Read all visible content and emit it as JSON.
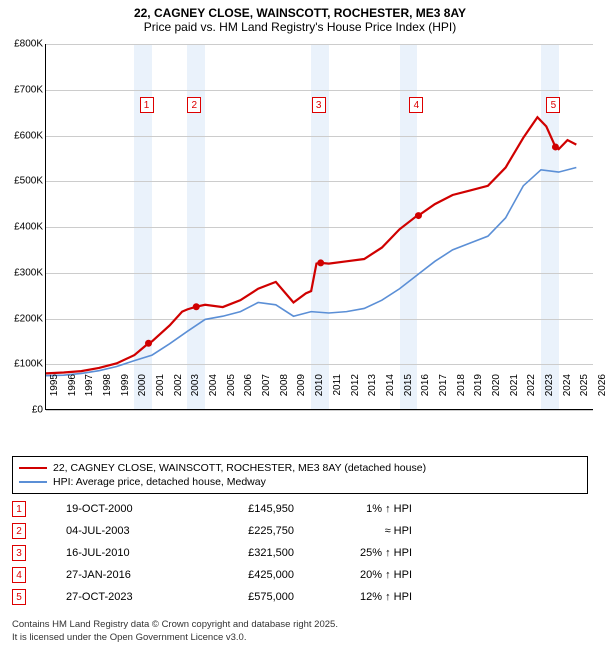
{
  "title_line1": "22, CAGNEY CLOSE, WAINSCOTT, ROCHESTER, ME3 8AY",
  "title_line2": "Price paid vs. HM Land Registry's House Price Index (HPI)",
  "chart": {
    "type": "line",
    "x_min": 1995,
    "x_max": 2026,
    "y_min": 0,
    "y_max": 800000,
    "y_ticks": [
      0,
      100000,
      200000,
      300000,
      400000,
      500000,
      600000,
      700000,
      800000
    ],
    "y_tick_labels": [
      "£0",
      "£100K",
      "£200K",
      "£300K",
      "£400K",
      "£500K",
      "£600K",
      "£700K",
      "£800K"
    ],
    "x_ticks": [
      1995,
      1996,
      1997,
      1998,
      1999,
      2000,
      2001,
      2002,
      2003,
      2004,
      2005,
      2006,
      2007,
      2008,
      2009,
      2010,
      2011,
      2012,
      2013,
      2014,
      2015,
      2016,
      2017,
      2018,
      2019,
      2020,
      2021,
      2022,
      2023,
      2024,
      2025,
      2026
    ],
    "grid_color": "#cccccc",
    "band_color": "#eaf2fb",
    "bands": [
      [
        2000,
        2001
      ],
      [
        2003,
        2004
      ],
      [
        2010,
        2011
      ],
      [
        2015,
        2016
      ],
      [
        2023,
        2024
      ]
    ],
    "series": [
      {
        "name": "22, CAGNEY CLOSE, WAINSCOTT, ROCHESTER, ME3 8AY (detached house)",
        "color": "#d00000",
        "width": 2.2,
        "points": [
          [
            1995,
            80000
          ],
          [
            1996,
            82000
          ],
          [
            1997,
            85000
          ],
          [
            1998,
            92000
          ],
          [
            1999,
            102000
          ],
          [
            2000,
            120000
          ],
          [
            2000.8,
            145950
          ],
          [
            2001,
            150000
          ],
          [
            2002,
            185000
          ],
          [
            2002.7,
            215000
          ],
          [
            2003,
            220000
          ],
          [
            2003.5,
            225750
          ],
          [
            2004,
            230000
          ],
          [
            2005,
            225000
          ],
          [
            2006,
            240000
          ],
          [
            2007,
            265000
          ],
          [
            2008,
            280000
          ],
          [
            2009,
            235000
          ],
          [
            2009.7,
            255000
          ],
          [
            2010,
            260000
          ],
          [
            2010.3,
            320000
          ],
          [
            2010.54,
            321500
          ],
          [
            2011,
            320000
          ],
          [
            2012,
            325000
          ],
          [
            2013,
            330000
          ],
          [
            2014,
            355000
          ],
          [
            2015,
            395000
          ],
          [
            2016,
            425000
          ],
          [
            2016.07,
            425000
          ],
          [
            2017,
            450000
          ],
          [
            2018,
            470000
          ],
          [
            2019,
            480000
          ],
          [
            2020,
            490000
          ],
          [
            2021,
            530000
          ],
          [
            2022,
            595000
          ],
          [
            2022.8,
            640000
          ],
          [
            2023.3,
            620000
          ],
          [
            2023.82,
            575000
          ],
          [
            2024,
            570000
          ],
          [
            2024.5,
            590000
          ],
          [
            2025,
            580000
          ]
        ]
      },
      {
        "name": "HPI: Average price, detached house, Medway",
        "color": "#5b8fd6",
        "width": 1.6,
        "points": [
          [
            1995,
            75000
          ],
          [
            1996,
            76000
          ],
          [
            1997,
            80000
          ],
          [
            1998,
            86000
          ],
          [
            1999,
            95000
          ],
          [
            2000,
            108000
          ],
          [
            2001,
            120000
          ],
          [
            2002,
            145000
          ],
          [
            2003,
            172000
          ],
          [
            2004,
            198000
          ],
          [
            2005,
            205000
          ],
          [
            2006,
            215000
          ],
          [
            2007,
            235000
          ],
          [
            2008,
            230000
          ],
          [
            2009,
            205000
          ],
          [
            2010,
            215000
          ],
          [
            2011,
            212000
          ],
          [
            2012,
            215000
          ],
          [
            2013,
            222000
          ],
          [
            2014,
            240000
          ],
          [
            2015,
            265000
          ],
          [
            2016,
            295000
          ],
          [
            2017,
            325000
          ],
          [
            2018,
            350000
          ],
          [
            2019,
            365000
          ],
          [
            2020,
            380000
          ],
          [
            2021,
            420000
          ],
          [
            2022,
            490000
          ],
          [
            2023,
            525000
          ],
          [
            2024,
            520000
          ],
          [
            2025,
            530000
          ]
        ]
      }
    ],
    "markers": [
      {
        "n": "1",
        "x": 2000.8,
        "y": 145950,
        "label_y": 685000
      },
      {
        "n": "2",
        "x": 2003.5,
        "y": 225750,
        "label_y": 685000
      },
      {
        "n": "3",
        "x": 2010.54,
        "y": 321500,
        "label_y": 685000
      },
      {
        "n": "4",
        "x": 2016.07,
        "y": 425000,
        "label_y": 685000
      },
      {
        "n": "5",
        "x": 2023.82,
        "y": 575000,
        "label_y": 685000
      }
    ]
  },
  "legend": [
    {
      "color": "#d00000",
      "label": "22, CAGNEY CLOSE, WAINSCOTT, ROCHESTER, ME3 8AY (detached house)"
    },
    {
      "color": "#5b8fd6",
      "label": "HPI: Average price, detached house, Medway"
    }
  ],
  "sales": [
    {
      "n": "1",
      "date": "19-OCT-2000",
      "price": "£145,950",
      "pct": "1% ↑ HPI"
    },
    {
      "n": "2",
      "date": "04-JUL-2003",
      "price": "£225,750",
      "pct": "≈ HPI"
    },
    {
      "n": "3",
      "date": "16-JUL-2010",
      "price": "£321,500",
      "pct": "25% ↑ HPI"
    },
    {
      "n": "4",
      "date": "27-JAN-2016",
      "price": "£425,000",
      "pct": "20% ↑ HPI"
    },
    {
      "n": "5",
      "date": "27-OCT-2023",
      "price": "£575,000",
      "pct": "12% ↑ HPI"
    }
  ],
  "footer_line1": "Contains HM Land Registry data © Crown copyright and database right 2025.",
  "footer_line2": "It is licensed under the Open Government Licence v3.0."
}
